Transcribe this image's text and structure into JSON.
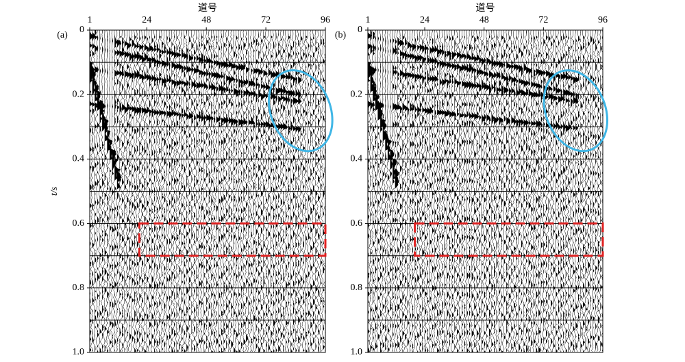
{
  "chart_data": [
    {
      "type": "seismic",
      "panel_label": "(a)",
      "xlabel": "道号",
      "ylabel": "t/s",
      "xlim": [
        1,
        96
      ],
      "xticks": [
        1,
        24,
        48,
        72,
        96
      ],
      "ylim": [
        0,
        1
      ],
      "yticks": [
        0,
        0.2,
        0.4,
        0.6,
        0.8,
        {
          "value": 1,
          "label": "1.0"
        }
      ],
      "ygrid": [
        0.1,
        0.2,
        0.3,
        0.4,
        0.5,
        0.6,
        0.7,
        0.8,
        0.9
      ],
      "ellipse": {
        "color": "#3fb6e6",
        "cx": 86,
        "cy": 0.25,
        "rx": 12,
        "ry": 0.13
      },
      "rectangle": {
        "color": "#e02020",
        "x": [
          21,
          96
        ],
        "y": [
          0.6,
          0.7
        ]
      }
    },
    {
      "type": "seismic",
      "panel_label": "(b)",
      "xlabel": "道号",
      "xlim": [
        1,
        96
      ],
      "xticks": [
        1,
        24,
        48,
        72,
        96
      ],
      "ylim": [
        0,
        1
      ],
      "yticks": [
        0,
        0.2,
        0.4,
        0.6,
        0.8,
        {
          "value": 1,
          "label": "1.0"
        }
      ],
      "ygrid": [
        0.1,
        0.2,
        0.3,
        0.4,
        0.5,
        0.6,
        0.7,
        0.8,
        0.9
      ],
      "ellipse": {
        "color": "#3fb6e6",
        "cx": 85,
        "cy": 0.25,
        "rx": 12,
        "ry": 0.13
      },
      "rectangle": {
        "color": "#e02020",
        "x": [
          20,
          96
        ],
        "y": [
          0.6,
          0.7
        ]
      }
    }
  ]
}
